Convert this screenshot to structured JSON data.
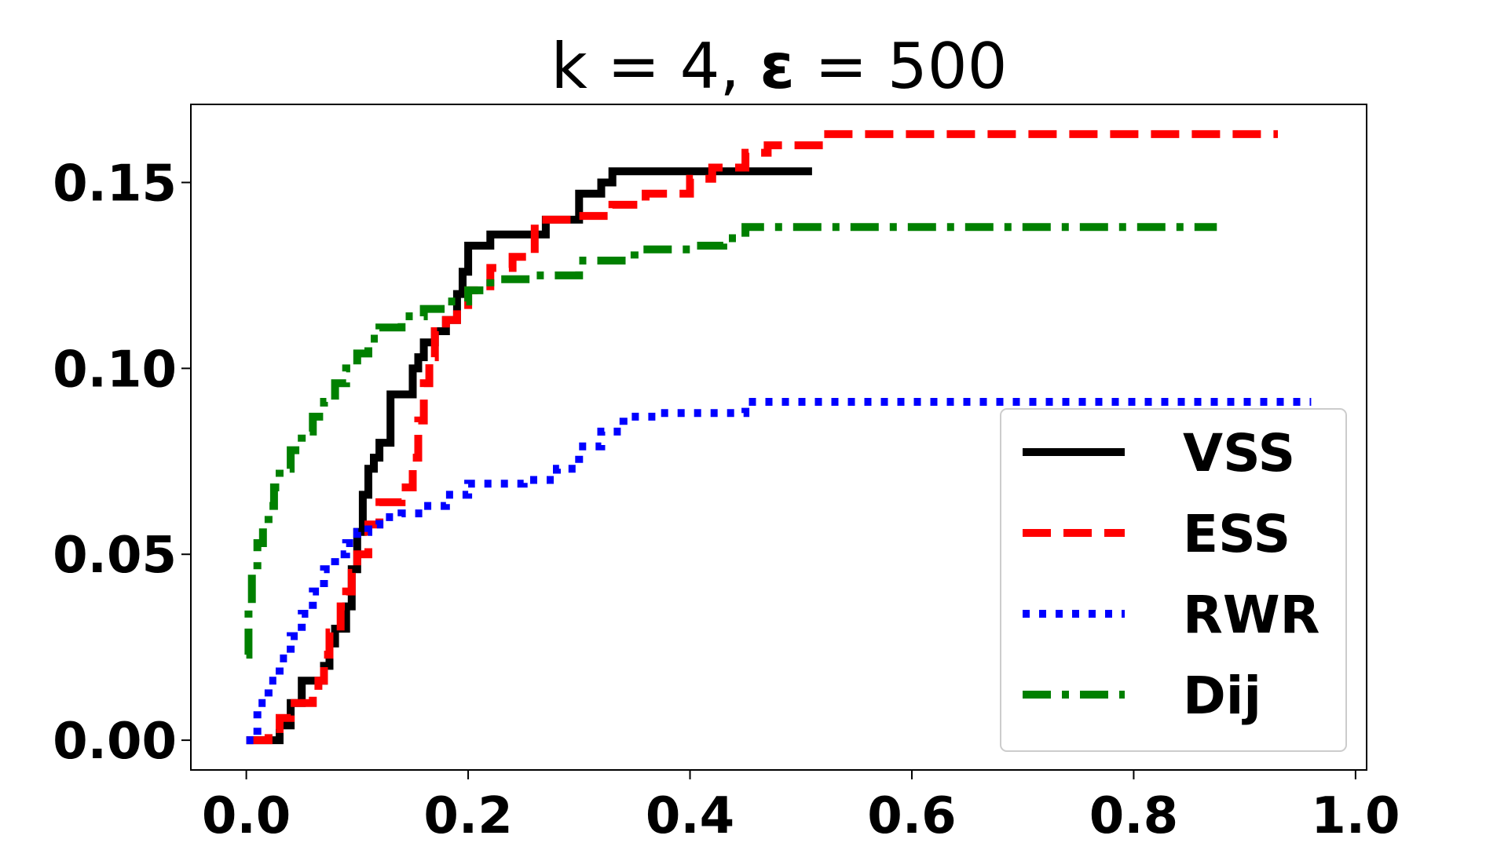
{
  "chart_data": {
    "type": "line",
    "title_prefix": "k = 4, ",
    "title_symbol": "ε",
    "title_suffix": " = 500",
    "xlabel": "",
    "ylabel": "",
    "xlim": [
      -0.05,
      1.01
    ],
    "ylim": [
      -0.008,
      0.171
    ],
    "xticks": [
      "0.0",
      "0.2",
      "0.4",
      "0.6",
      "0.8",
      "1.0"
    ],
    "xtick_values": [
      0.0,
      0.2,
      0.4,
      0.6,
      0.8,
      1.0
    ],
    "yticks": [
      "0.00",
      "0.05",
      "0.10",
      "0.15"
    ],
    "ytick_values": [
      0.0,
      0.05,
      0.1,
      0.15
    ],
    "grid": false,
    "legend_position": "lower-right",
    "series": [
      {
        "name": "VSS",
        "color": "#000000",
        "style": "solid",
        "x": [
          0.0,
          0.02,
          0.03,
          0.04,
          0.05,
          0.06,
          0.07,
          0.075,
          0.08,
          0.09,
          0.095,
          0.1,
          0.105,
          0.11,
          0.115,
          0.12,
          0.13,
          0.14,
          0.15,
          0.155,
          0.16,
          0.17,
          0.18,
          0.19,
          0.195,
          0.2,
          0.22,
          0.25,
          0.27,
          0.29,
          0.3,
          0.32,
          0.33,
          0.4,
          0.45,
          0.51
        ],
        "y": [
          0.0,
          0.0,
          0.004,
          0.01,
          0.016,
          0.016,
          0.02,
          0.026,
          0.03,
          0.036,
          0.046,
          0.056,
          0.066,
          0.073,
          0.076,
          0.08,
          0.093,
          0.093,
          0.1,
          0.103,
          0.107,
          0.11,
          0.113,
          0.12,
          0.126,
          0.133,
          0.136,
          0.136,
          0.14,
          0.14,
          0.147,
          0.15,
          0.153,
          0.153,
          0.153,
          0.153
        ]
      },
      {
        "name": "ESS",
        "color": "#ff0000",
        "style": "dashed",
        "x": [
          0.0,
          0.02,
          0.03,
          0.04,
          0.06,
          0.065,
          0.07,
          0.075,
          0.085,
          0.09,
          0.095,
          0.1,
          0.11,
          0.12,
          0.14,
          0.15,
          0.155,
          0.16,
          0.165,
          0.17,
          0.18,
          0.19,
          0.2,
          0.22,
          0.24,
          0.26,
          0.3,
          0.33,
          0.36,
          0.4,
          0.42,
          0.45,
          0.47,
          0.52,
          0.6,
          0.75,
          0.93
        ],
        "y": [
          0.0,
          0.003,
          0.006,
          0.01,
          0.013,
          0.016,
          0.023,
          0.029,
          0.036,
          0.04,
          0.045,
          0.05,
          0.058,
          0.064,
          0.068,
          0.076,
          0.086,
          0.096,
          0.103,
          0.11,
          0.113,
          0.116,
          0.121,
          0.127,
          0.13,
          0.14,
          0.141,
          0.144,
          0.147,
          0.151,
          0.154,
          0.158,
          0.16,
          0.163,
          0.163,
          0.163,
          0.163
        ]
      },
      {
        "name": "RWR",
        "color": "#0000ff",
        "style": "dotted",
        "x": [
          0.0,
          0.01,
          0.02,
          0.03,
          0.04,
          0.05,
          0.06,
          0.07,
          0.08,
          0.09,
          0.1,
          0.11,
          0.12,
          0.14,
          0.16,
          0.18,
          0.2,
          0.25,
          0.28,
          0.3,
          0.32,
          0.34,
          0.37,
          0.4,
          0.43,
          0.45,
          0.5,
          0.6,
          0.8,
          0.96
        ],
        "y": [
          0.0,
          0.01,
          0.016,
          0.022,
          0.028,
          0.034,
          0.04,
          0.046,
          0.05,
          0.053,
          0.056,
          0.058,
          0.06,
          0.061,
          0.063,
          0.066,
          0.069,
          0.07,
          0.073,
          0.079,
          0.083,
          0.087,
          0.088,
          0.088,
          0.088,
          0.091,
          0.091,
          0.091,
          0.091,
          0.091
        ]
      },
      {
        "name": "Dij",
        "color": "#008000",
        "style": "dashdot",
        "x": [
          0.0,
          0.002,
          0.005,
          0.01,
          0.015,
          0.02,
          0.025,
          0.03,
          0.04,
          0.05,
          0.06,
          0.07,
          0.08,
          0.09,
          0.1,
          0.11,
          0.12,
          0.14,
          0.16,
          0.18,
          0.2,
          0.22,
          0.26,
          0.3,
          0.35,
          0.4,
          0.43,
          0.45,
          0.5,
          0.6,
          0.7,
          0.8,
          0.875
        ],
        "y": [
          0.023,
          0.035,
          0.045,
          0.053,
          0.058,
          0.063,
          0.068,
          0.073,
          0.078,
          0.083,
          0.087,
          0.091,
          0.096,
          0.1,
          0.104,
          0.108,
          0.111,
          0.114,
          0.116,
          0.118,
          0.121,
          0.124,
          0.125,
          0.129,
          0.132,
          0.133,
          0.135,
          0.138,
          0.138,
          0.138,
          0.138,
          0.138,
          0.138
        ]
      }
    ]
  }
}
